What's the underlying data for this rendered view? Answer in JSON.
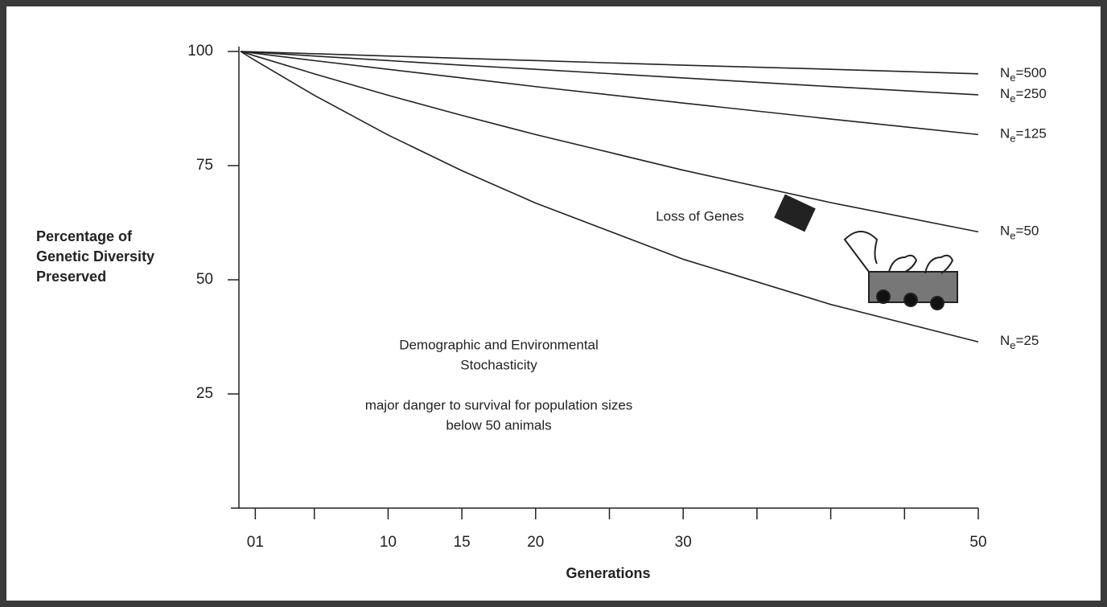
{
  "chart_data": {
    "type": "line",
    "y_label": [
      "Percentage of",
      "Genetic Diversity",
      "Preserved"
    ],
    "x_label": "Generations",
    "x": [
      0,
      1,
      5,
      10,
      15,
      20,
      30,
      40,
      50
    ],
    "series": [
      {
        "name": "Ne=500",
        "color": "#222222",
        "values": [
          100,
          99.9,
          99.5,
          99.0,
          98.5,
          98.0,
          97.0,
          96.1,
          95.1
        ]
      },
      {
        "name": "Ne=250",
        "color": "#222222",
        "values": [
          100,
          99.8,
          99.0,
          98.0,
          97.0,
          96.1,
          94.2,
          92.3,
          90.5
        ]
      },
      {
        "name": "Ne=125",
        "color": "#222222",
        "values": [
          100,
          99.6,
          98.0,
          96.1,
          94.2,
          92.3,
          88.7,
          85.2,
          81.8
        ]
      },
      {
        "name": "Ne=50",
        "color": "#222222",
        "values": [
          100,
          99.0,
          95.1,
          90.4,
          86.0,
          81.8,
          74.0,
          66.9,
          60.5
        ]
      },
      {
        "name": "Ne=25",
        "color": "#222222",
        "values": [
          100,
          98.0,
          90.4,
          81.7,
          73.9,
          66.8,
          54.5,
          44.6,
          36.4
        ]
      }
    ],
    "xlim": [
      0,
      50
    ],
    "xticks": [
      {
        "value": 1,
        "label": "01"
      },
      10,
      15,
      20,
      30,
      50
    ],
    "xminor_ticks": [
      5,
      25,
      35,
      40,
      45
    ],
    "ylim": [
      0,
      100
    ],
    "yticks": [
      25,
      50,
      75,
      100
    ],
    "annotations": {
      "loss": "Loss of Genes",
      "stochasticity": [
        "Demographic and Environmental",
        "Stochasticity"
      ],
      "danger": [
        "major danger to survival for population sizes",
        "below 50 animals"
      ]
    }
  }
}
